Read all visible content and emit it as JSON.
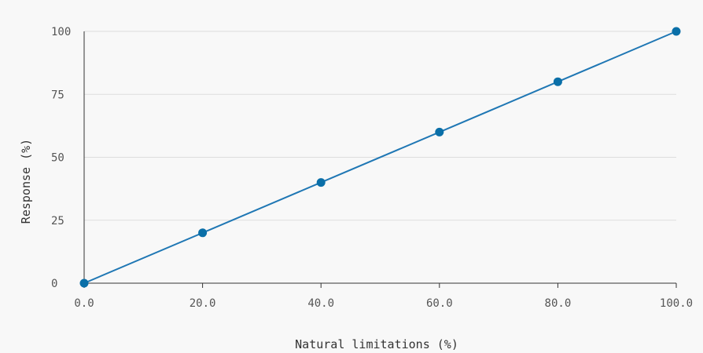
{
  "chart_data": {
    "type": "line",
    "title": "",
    "xlabel": "Natural limitations (%)",
    "ylabel": "Response (%)",
    "x": [
      0,
      20,
      40,
      60,
      80,
      100
    ],
    "x_tick_values": [
      0,
      20,
      40,
      60,
      80,
      100
    ],
    "x_tick_labels": [
      "0.0",
      "20.0",
      "40.0",
      "60.0",
      "80.0",
      "100.0"
    ],
    "y_tick_values": [
      0,
      25,
      50,
      75,
      100
    ],
    "y_tick_labels": [
      "0",
      "25",
      "50",
      "75",
      "100"
    ],
    "xlim": [
      0,
      100
    ],
    "ylim": [
      0,
      100
    ],
    "grid": "horizontal",
    "legend": "none",
    "series": [
      {
        "values": [
          0,
          20,
          40,
          60,
          80,
          100
        ]
      }
    ],
    "colors": {
      "series": "#1f77b4",
      "point": "#0a6fa8",
      "grid": "#dddddd",
      "axis": "#333333",
      "background": "#f8f8f8"
    }
  }
}
